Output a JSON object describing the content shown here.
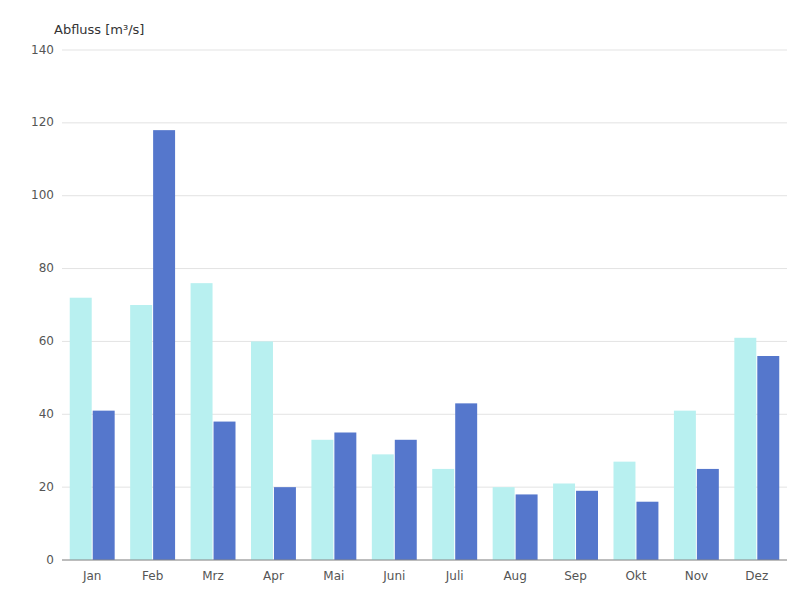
{
  "chart_data": {
    "type": "bar",
    "ylabel": "Abfluss [m³/s]",
    "categories": [
      "Jan",
      "Feb",
      "Mrz",
      "Apr",
      "Mai",
      "Juni",
      "Juli",
      "Aug",
      "Sep",
      "Okt",
      "Nov",
      "Dez"
    ],
    "series": [
      {
        "color": "#b8f0f0",
        "values": [
          72,
          70,
          76,
          60,
          33,
          29,
          25,
          20,
          21,
          27,
          41,
          61
        ]
      },
      {
        "color": "#5577cc",
        "values": [
          41,
          118,
          38,
          20,
          35,
          33,
          43,
          18,
          19,
          16,
          25,
          56
        ]
      }
    ],
    "ylim": [
      0,
      140
    ],
    "yticks": [
      0,
      20,
      40,
      60,
      80,
      100,
      120,
      140
    ],
    "grid": true
  }
}
